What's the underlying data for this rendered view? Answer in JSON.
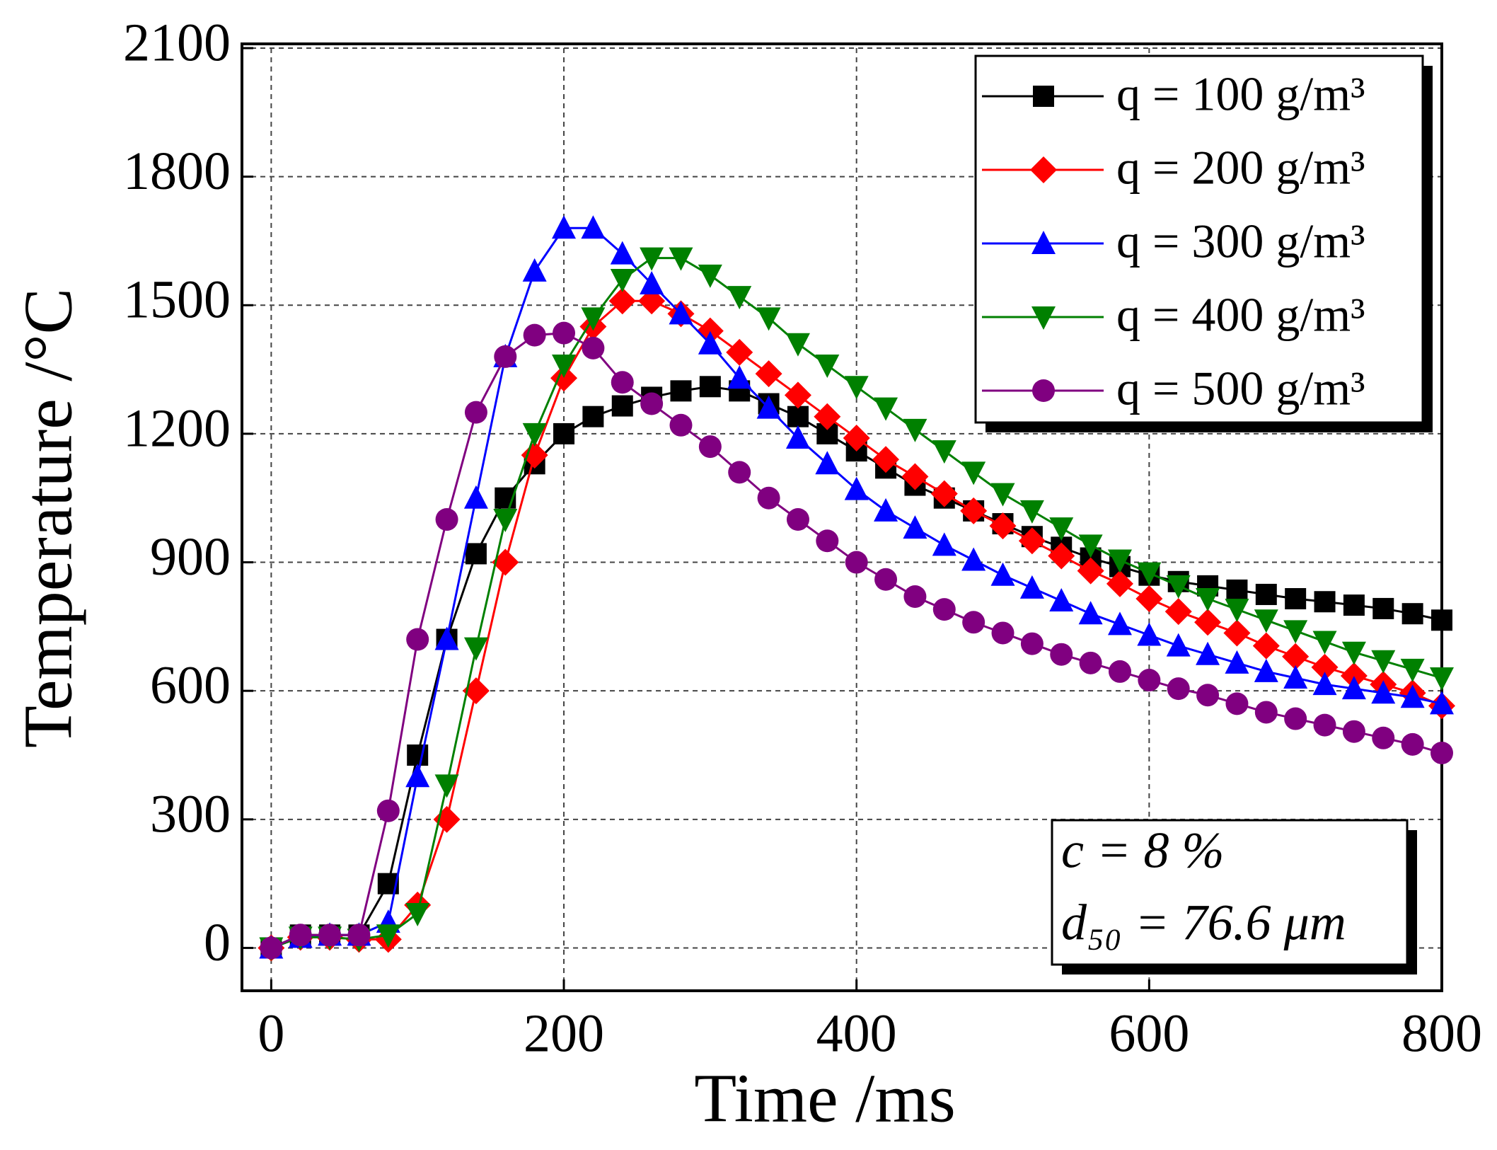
{
  "chart_data": {
    "type": "line",
    "x_label": "Time /ms",
    "y_label": "Temperature /°C",
    "xlim": [
      -20,
      800
    ],
    "ylim": [
      -100,
      2100
    ],
    "xticks": [
      0,
      200,
      400,
      600,
      800
    ],
    "yticks": [
      0,
      300,
      600,
      900,
      1200,
      1500,
      1800,
      2100
    ],
    "grid": true,
    "legend": "upper right",
    "annotations": [
      "c = 8 %",
      "d₅₀ = 76.6 μm"
    ],
    "x": [
      0,
      20,
      40,
      60,
      80,
      100,
      120,
      140,
      160,
      180,
      200,
      220,
      240,
      260,
      280,
      300,
      320,
      340,
      360,
      380,
      400,
      420,
      440,
      460,
      480,
      500,
      520,
      540,
      560,
      580,
      600,
      620,
      640,
      660,
      680,
      700,
      720,
      740,
      760,
      780,
      800
    ],
    "series": [
      {
        "name": "q = 100 g/m³",
        "color": "#000000",
        "marker": "square",
        "values": [
          0,
          30,
          30,
          30,
          150,
          450,
          720,
          920,
          1050,
          1130,
          1200,
          1240,
          1265,
          1285,
          1300,
          1310,
          1300,
          1270,
          1240,
          1200,
          1160,
          1120,
          1080,
          1050,
          1020,
          990,
          960,
          935,
          910,
          890,
          870,
          855,
          845,
          835,
          825,
          815,
          808,
          800,
          792,
          780,
          765
        ]
      },
      {
        "name": "q = 200 g/m³",
        "color": "#ff0000",
        "marker": "diamond",
        "values": [
          0,
          25,
          25,
          20,
          20,
          100,
          300,
          600,
          900,
          1150,
          1330,
          1450,
          1510,
          1510,
          1480,
          1440,
          1390,
          1340,
          1290,
          1240,
          1190,
          1140,
          1100,
          1060,
          1020,
          985,
          950,
          915,
          880,
          850,
          815,
          785,
          760,
          735,
          705,
          680,
          655,
          635,
          615,
          595,
          565
        ]
      },
      {
        "name": "q = 300 g/m³",
        "color": "#0000ff",
        "marker": "triangle-up",
        "values": [
          0,
          25,
          30,
          30,
          60,
          400,
          720,
          1050,
          1380,
          1580,
          1680,
          1680,
          1620,
          1550,
          1480,
          1410,
          1330,
          1260,
          1190,
          1130,
          1070,
          1020,
          980,
          940,
          905,
          870,
          840,
          810,
          780,
          755,
          730,
          705,
          685,
          665,
          645,
          630,
          615,
          605,
          595,
          585,
          570
        ]
      },
      {
        "name": "q = 400 g/m³",
        "color": "#008000",
        "marker": "triangle-down",
        "values": [
          0,
          25,
          25,
          20,
          30,
          80,
          380,
          700,
          1000,
          1200,
          1360,
          1470,
          1560,
          1610,
          1610,
          1570,
          1520,
          1470,
          1410,
          1360,
          1310,
          1260,
          1210,
          1160,
          1110,
          1060,
          1020,
          980,
          940,
          905,
          875,
          845,
          815,
          790,
          765,
          740,
          715,
          690,
          670,
          650,
          630
        ]
      },
      {
        "name": "q = 500 g/m³",
        "color": "#800080",
        "marker": "circle",
        "values": [
          0,
          30,
          30,
          30,
          320,
          720,
          1000,
          1250,
          1380,
          1430,
          1435,
          1400,
          1320,
          1270,
          1220,
          1170,
          1110,
          1050,
          1000,
          950,
          900,
          860,
          820,
          790,
          760,
          735,
          710,
          685,
          665,
          645,
          625,
          605,
          590,
          570,
          550,
          535,
          520,
          505,
          490,
          475,
          455
        ]
      }
    ]
  }
}
